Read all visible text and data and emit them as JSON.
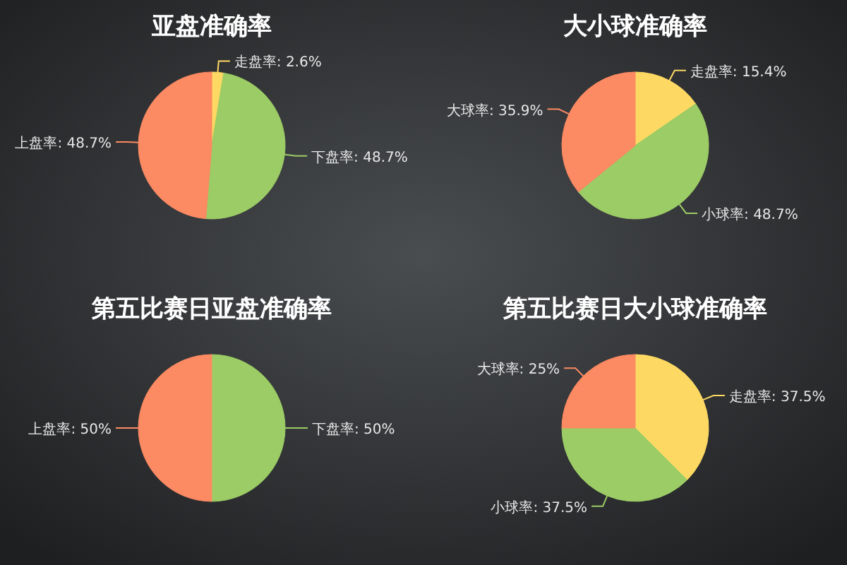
{
  "chart_data": [
    {
      "type": "pie",
      "title": "亚盘准确率",
      "categories": [
        "走盘率",
        "下盘率",
        "上盘率"
      ],
      "values": [
        2.6,
        48.7,
        48.7
      ],
      "colors": [
        "#fdd963",
        "#9ccc65",
        "#fc8a63"
      ],
      "value_labels": [
        "2.6%",
        "48.7%",
        "48.7%"
      ]
    },
    {
      "type": "pie",
      "title": "大小球准确率",
      "categories": [
        "走盘率",
        "小球率",
        "大球率"
      ],
      "values": [
        15.4,
        48.7,
        35.9
      ],
      "colors": [
        "#fdd963",
        "#9ccc65",
        "#fc8a63"
      ],
      "value_labels": [
        "15.4%",
        "48.7%",
        "35.9%"
      ]
    },
    {
      "type": "pie",
      "title": "第五比赛日亚盘准确率",
      "categories": [
        "下盘率",
        "上盘率"
      ],
      "values": [
        50,
        50
      ],
      "colors": [
        "#9ccc65",
        "#fc8a63"
      ],
      "value_labels": [
        "50%",
        "50%"
      ]
    },
    {
      "type": "pie",
      "title": "第五比赛日大小球准确率",
      "categories": [
        "走盘率",
        "小球率",
        "大球率"
      ],
      "values": [
        37.5,
        37.5,
        25
      ],
      "colors": [
        "#fdd963",
        "#9ccc65",
        "#fc8a63"
      ],
      "value_labels": [
        "37.5%",
        "37.5%",
        "25%"
      ]
    }
  ]
}
